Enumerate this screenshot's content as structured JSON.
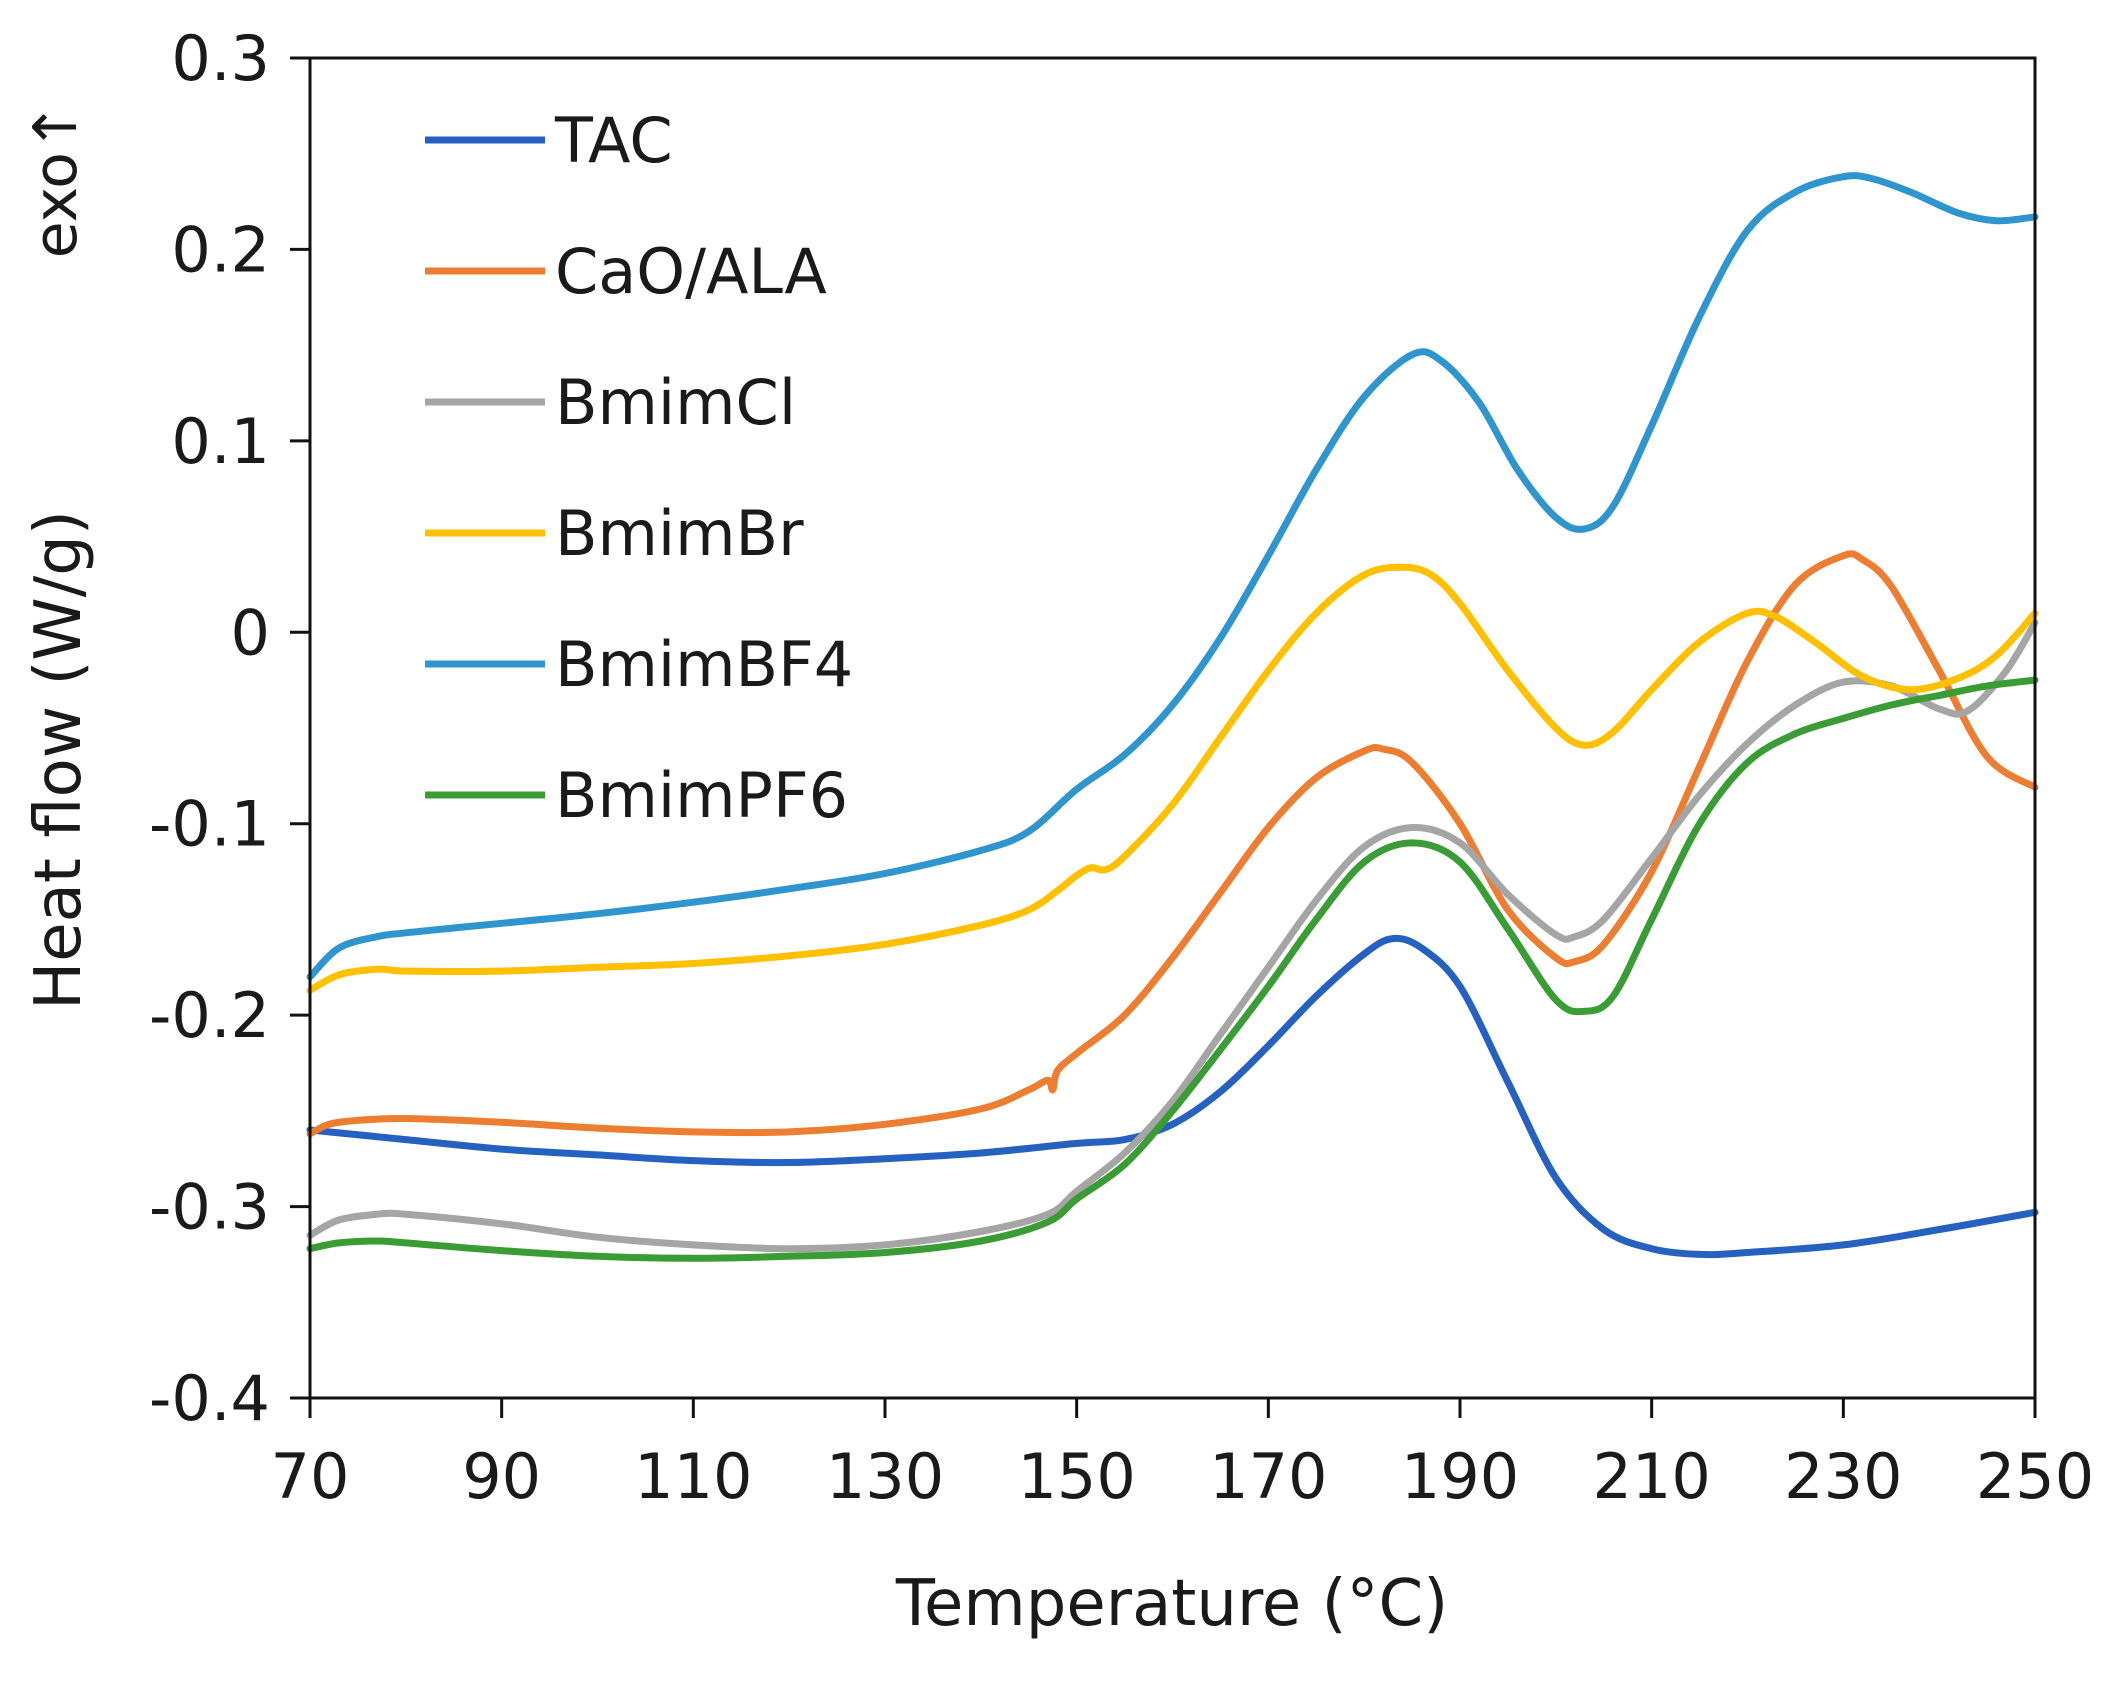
{
  "chart_data": {
    "type": "line",
    "xlabel": "Temperature (°C)",
    "ylabel": "Heat flow (W/g)",
    "annotation": "exo↑",
    "xlim": [
      70,
      250
    ],
    "ylim": [
      -0.4,
      0.3
    ],
    "xticks": [
      70,
      90,
      110,
      130,
      150,
      170,
      190,
      210,
      230,
      250
    ],
    "yticks": [
      0.3,
      0.2,
      0.1,
      0,
      -0.1,
      -0.2,
      -0.3,
      -0.4
    ],
    "ytick_labels": [
      "0.3",
      "0.2",
      "0.1",
      "0",
      "-0.1",
      "-0.2",
      "-0.3",
      "-0.4"
    ],
    "legend_position": "top-left",
    "grid": false,
    "series": [
      {
        "name": "TAC",
        "color": "#2561C0",
        "points": [
          [
            70,
            -0.26
          ],
          [
            80,
            -0.265
          ],
          [
            90,
            -0.27
          ],
          [
            100,
            -0.273
          ],
          [
            110,
            -0.276
          ],
          [
            120,
            -0.277
          ],
          [
            130,
            -0.275
          ],
          [
            140,
            -0.272
          ],
          [
            150,
            -0.267
          ],
          [
            155,
            -0.265
          ],
          [
            160,
            -0.257
          ],
          [
            165,
            -0.24
          ],
          [
            170,
            -0.216
          ],
          [
            175,
            -0.19
          ],
          [
            180,
            -0.168
          ],
          [
            183,
            -0.16
          ],
          [
            186,
            -0.165
          ],
          [
            190,
            -0.185
          ],
          [
            195,
            -0.235
          ],
          [
            200,
            -0.285
          ],
          [
            205,
            -0.312
          ],
          [
            210,
            -0.322
          ],
          [
            215,
            -0.325
          ],
          [
            220,
            -0.324
          ],
          [
            230,
            -0.32
          ],
          [
            240,
            -0.312
          ],
          [
            250,
            -0.303
          ]
        ]
      },
      {
        "name": "CaO/ALA",
        "color": "#ED7D31",
        "points": [
          [
            70,
            -0.262
          ],
          [
            72,
            -0.257
          ],
          [
            75,
            -0.255
          ],
          [
            80,
            -0.254
          ],
          [
            90,
            -0.256
          ],
          [
            100,
            -0.259
          ],
          [
            110,
            -0.261
          ],
          [
            120,
            -0.261
          ],
          [
            130,
            -0.257
          ],
          [
            140,
            -0.249
          ],
          [
            145,
            -0.239
          ],
          [
            147,
            -0.234
          ],
          [
            147.5,
            -0.239
          ],
          [
            148,
            -0.229
          ],
          [
            150,
            -0.22
          ],
          [
            155,
            -0.2
          ],
          [
            160,
            -0.17
          ],
          [
            165,
            -0.136
          ],
          [
            170,
            -0.102
          ],
          [
            175,
            -0.076
          ],
          [
            180,
            -0.062
          ],
          [
            182,
            -0.061
          ],
          [
            185,
            -0.068
          ],
          [
            190,
            -0.1
          ],
          [
            195,
            -0.145
          ],
          [
            200,
            -0.17
          ],
          [
            202,
            -0.172
          ],
          [
            205,
            -0.163
          ],
          [
            210,
            -0.125
          ],
          [
            215,
            -0.07
          ],
          [
            220,
            -0.015
          ],
          [
            225,
            0.025
          ],
          [
            230,
            0.04
          ],
          [
            232,
            0.038
          ],
          [
            235,
            0.024
          ],
          [
            240,
            -0.02
          ],
          [
            245,
            -0.065
          ],
          [
            250,
            -0.081
          ]
        ]
      },
      {
        "name": "BmimCl",
        "color": "#A5A5A5",
        "points": [
          [
            70,
            -0.315
          ],
          [
            73,
            -0.307
          ],
          [
            77,
            -0.304
          ],
          [
            80,
            -0.304
          ],
          [
            90,
            -0.309
          ],
          [
            100,
            -0.316
          ],
          [
            110,
            -0.32
          ],
          [
            120,
            -0.322
          ],
          [
            130,
            -0.32
          ],
          [
            140,
            -0.313
          ],
          [
            147,
            -0.304
          ],
          [
            150,
            -0.292
          ],
          [
            155,
            -0.272
          ],
          [
            160,
            -0.245
          ],
          [
            165,
            -0.21
          ],
          [
            170,
            -0.175
          ],
          [
            175,
            -0.14
          ],
          [
            180,
            -0.112
          ],
          [
            185,
            -0.102
          ],
          [
            190,
            -0.11
          ],
          [
            195,
            -0.137
          ],
          [
            200,
            -0.158
          ],
          [
            202,
            -0.159
          ],
          [
            205,
            -0.15
          ],
          [
            210,
            -0.118
          ],
          [
            215,
            -0.085
          ],
          [
            220,
            -0.058
          ],
          [
            225,
            -0.038
          ],
          [
            230,
            -0.026
          ],
          [
            235,
            -0.028
          ],
          [
            240,
            -0.04
          ],
          [
            243,
            -0.041
          ],
          [
            247,
            -0.02
          ],
          [
            250,
            0.005
          ]
        ]
      },
      {
        "name": "BmimBr",
        "color": "#FFC000",
        "points": [
          [
            70,
            -0.187
          ],
          [
            73,
            -0.179
          ],
          [
            77,
            -0.176
          ],
          [
            80,
            -0.177
          ],
          [
            90,
            -0.177
          ],
          [
            100,
            -0.175
          ],
          [
            110,
            -0.173
          ],
          [
            120,
            -0.169
          ],
          [
            130,
            -0.163
          ],
          [
            140,
            -0.153
          ],
          [
            145,
            -0.145
          ],
          [
            148,
            -0.135
          ],
          [
            150,
            -0.127
          ],
          [
            151.5,
            -0.123
          ],
          [
            153,
            -0.124
          ],
          [
            155,
            -0.117
          ],
          [
            160,
            -0.09
          ],
          [
            165,
            -0.055
          ],
          [
            170,
            -0.02
          ],
          [
            175,
            0.01
          ],
          [
            180,
            0.03
          ],
          [
            184,
            0.034
          ],
          [
            187,
            0.03
          ],
          [
            190,
            0.015
          ],
          [
            195,
            -0.02
          ],
          [
            200,
            -0.05
          ],
          [
            203,
            -0.059
          ],
          [
            206,
            -0.052
          ],
          [
            210,
            -0.03
          ],
          [
            215,
            -0.005
          ],
          [
            220,
            0.01
          ],
          [
            223,
            0.008
          ],
          [
            227,
            -0.005
          ],
          [
            232,
            -0.023
          ],
          [
            237,
            -0.03
          ],
          [
            242,
            -0.024
          ],
          [
            246,
            -0.012
          ],
          [
            250,
            0.01
          ]
        ]
      },
      {
        "name": "BmimBF4",
        "color": "#2E95CE",
        "points": [
          [
            70,
            -0.18
          ],
          [
            73,
            -0.165
          ],
          [
            77,
            -0.159
          ],
          [
            80,
            -0.157
          ],
          [
            90,
            -0.152
          ],
          [
            100,
            -0.147
          ],
          [
            110,
            -0.141
          ],
          [
            120,
            -0.134
          ],
          [
            130,
            -0.126
          ],
          [
            140,
            -0.114
          ],
          [
            145,
            -0.104
          ],
          [
            150,
            -0.082
          ],
          [
            155,
            -0.064
          ],
          [
            160,
            -0.038
          ],
          [
            165,
            -0.003
          ],
          [
            170,
            0.04
          ],
          [
            175,
            0.085
          ],
          [
            180,
            0.123
          ],
          [
            185,
            0.145
          ],
          [
            188,
            0.142
          ],
          [
            192,
            0.12
          ],
          [
            196,
            0.085
          ],
          [
            200,
            0.06
          ],
          [
            203,
            0.054
          ],
          [
            206,
            0.066
          ],
          [
            210,
            0.108
          ],
          [
            215,
            0.165
          ],
          [
            220,
            0.21
          ],
          [
            225,
            0.23
          ],
          [
            230,
            0.238
          ],
          [
            233,
            0.237
          ],
          [
            237,
            0.23
          ],
          [
            242,
            0.219
          ],
          [
            246,
            0.215
          ],
          [
            250,
            0.217
          ]
        ]
      },
      {
        "name": "BmimPF6",
        "color": "#3A9C35",
        "points": [
          [
            70,
            -0.322
          ],
          [
            73,
            -0.319
          ],
          [
            77,
            -0.318
          ],
          [
            80,
            -0.319
          ],
          [
            90,
            -0.323
          ],
          [
            100,
            -0.326
          ],
          [
            110,
            -0.327
          ],
          [
            120,
            -0.326
          ],
          [
            130,
            -0.324
          ],
          [
            140,
            -0.318
          ],
          [
            147,
            -0.308
          ],
          [
            150,
            -0.296
          ],
          [
            155,
            -0.278
          ],
          [
            160,
            -0.25
          ],
          [
            165,
            -0.218
          ],
          [
            170,
            -0.185
          ],
          [
            175,
            -0.15
          ],
          [
            180,
            -0.12
          ],
          [
            185,
            -0.11
          ],
          [
            190,
            -0.12
          ],
          [
            195,
            -0.155
          ],
          [
            200,
            -0.192
          ],
          [
            203,
            -0.198
          ],
          [
            206,
            -0.19
          ],
          [
            210,
            -0.15
          ],
          [
            215,
            -0.1
          ],
          [
            220,
            -0.068
          ],
          [
            225,
            -0.053
          ],
          [
            230,
            -0.045
          ],
          [
            235,
            -0.038
          ],
          [
            240,
            -0.033
          ],
          [
            245,
            -0.028
          ],
          [
            250,
            -0.025
          ]
        ]
      }
    ]
  }
}
